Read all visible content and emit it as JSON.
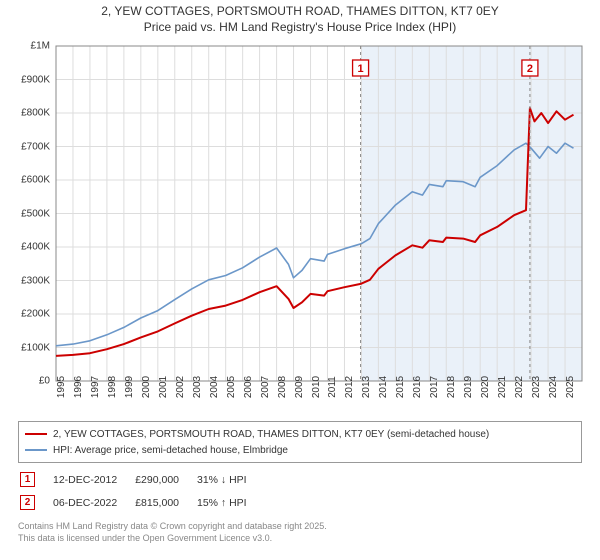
{
  "title_line1": "2, YEW COTTAGES, PORTSMOUTH ROAD, THAMES DITTON, KT7 0EY",
  "title_line2": "Price paid vs. HM Land Registry's House Price Index (HPI)",
  "chart": {
    "type": "line",
    "background_color": "#ffffff",
    "plot_border_color": "#888888",
    "grid_color": "#dddddd",
    "recent_band_color": "#eaf1f9",
    "recent_band_start_year": 2013,
    "xlim": [
      1995,
      2026
    ],
    "ylim": [
      0,
      1000000
    ],
    "ytick_step": 100000,
    "yticks": [
      "£0",
      "£100K",
      "£200K",
      "£300K",
      "£400K",
      "£500K",
      "£600K",
      "£700K",
      "£800K",
      "£900K",
      "£1M"
    ],
    "xticks": [
      "1995",
      "1996",
      "1997",
      "1998",
      "1999",
      "2000",
      "2001",
      "2002",
      "2003",
      "2004",
      "2005",
      "2006",
      "2007",
      "2008",
      "2009",
      "2010",
      "2011",
      "2012",
      "2013",
      "2014",
      "2015",
      "2016",
      "2017",
      "2018",
      "2019",
      "2020",
      "2021",
      "2022",
      "2023",
      "2024",
      "2025"
    ],
    "label_fontsize": 10,
    "series": [
      {
        "name": "price_paid",
        "color": "#cc0000",
        "width": 2,
        "points": [
          [
            1995,
            75000
          ],
          [
            1996,
            78000
          ],
          [
            1997,
            83000
          ],
          [
            1998,
            95000
          ],
          [
            1999,
            110000
          ],
          [
            2000,
            130000
          ],
          [
            2001,
            148000
          ],
          [
            2002,
            172000
          ],
          [
            2003,
            195000
          ],
          [
            2004,
            215000
          ],
          [
            2005,
            225000
          ],
          [
            2006,
            242000
          ],
          [
            2007,
            265000
          ],
          [
            2008,
            283000
          ],
          [
            2008.7,
            245000
          ],
          [
            2009,
            218000
          ],
          [
            2009.5,
            235000
          ],
          [
            2010,
            260000
          ],
          [
            2010.8,
            255000
          ],
          [
            2011,
            268000
          ],
          [
            2012,
            280000
          ],
          [
            2012.95,
            290000
          ],
          [
            2013.5,
            302000
          ],
          [
            2014,
            335000
          ],
          [
            2015,
            375000
          ],
          [
            2016,
            405000
          ],
          [
            2016.6,
            398000
          ],
          [
            2017,
            420000
          ],
          [
            2017.8,
            415000
          ],
          [
            2018,
            428000
          ],
          [
            2019,
            425000
          ],
          [
            2019.7,
            415000
          ],
          [
            2020,
            435000
          ],
          [
            2021,
            460000
          ],
          [
            2022,
            495000
          ],
          [
            2022.7,
            510000
          ],
          [
            2022.93,
            815000
          ],
          [
            2023.2,
            775000
          ],
          [
            2023.6,
            800000
          ],
          [
            2024,
            770000
          ],
          [
            2024.5,
            805000
          ],
          [
            2025,
            780000
          ],
          [
            2025.5,
            795000
          ]
        ]
      },
      {
        "name": "hpi",
        "color": "#6b97c9",
        "width": 1.6,
        "points": [
          [
            1995,
            105000
          ],
          [
            1996,
            110000
          ],
          [
            1997,
            120000
          ],
          [
            1998,
            138000
          ],
          [
            1999,
            160000
          ],
          [
            2000,
            188000
          ],
          [
            2001,
            210000
          ],
          [
            2002,
            243000
          ],
          [
            2003,
            275000
          ],
          [
            2004,
            302000
          ],
          [
            2005,
            315000
          ],
          [
            2006,
            338000
          ],
          [
            2007,
            370000
          ],
          [
            2008,
            397000
          ],
          [
            2008.7,
            348000
          ],
          [
            2009,
            308000
          ],
          [
            2009.5,
            330000
          ],
          [
            2010,
            365000
          ],
          [
            2010.8,
            358000
          ],
          [
            2011,
            378000
          ],
          [
            2012,
            395000
          ],
          [
            2013,
            410000
          ],
          [
            2013.5,
            425000
          ],
          [
            2014,
            470000
          ],
          [
            2015,
            525000
          ],
          [
            2016,
            565000
          ],
          [
            2016.6,
            555000
          ],
          [
            2017,
            587000
          ],
          [
            2017.8,
            580000
          ],
          [
            2018,
            598000
          ],
          [
            2019,
            595000
          ],
          [
            2019.7,
            580000
          ],
          [
            2020,
            608000
          ],
          [
            2021,
            643000
          ],
          [
            2022,
            690000
          ],
          [
            2022.7,
            710000
          ],
          [
            2023,
            695000
          ],
          [
            2023.5,
            665000
          ],
          [
            2024,
            700000
          ],
          [
            2024.5,
            680000
          ],
          [
            2025,
            710000
          ],
          [
            2025.5,
            695000
          ]
        ]
      }
    ],
    "markers": [
      {
        "num": "1",
        "year": 2012.95,
        "value": 290000,
        "border_color": "#cc0000",
        "text_color": "#cc0000",
        "date": "12-DEC-2012",
        "price": "£290,000",
        "delta": "31% ↓ HPI"
      },
      {
        "num": "2",
        "year": 2022.93,
        "value": 815000,
        "border_color": "#cc0000",
        "text_color": "#cc0000",
        "date": "06-DEC-2022",
        "price": "£815,000",
        "delta": "15% ↑ HPI"
      }
    ]
  },
  "legend": {
    "items": [
      {
        "color": "#cc0000",
        "label": "2, YEW COTTAGES, PORTSMOUTH ROAD, THAMES DITTON, KT7 0EY (semi-detached house)"
      },
      {
        "color": "#6b97c9",
        "label": "HPI: Average price, semi-detached house, Elmbridge"
      }
    ]
  },
  "footer_line1": "Contains HM Land Registry data © Crown copyright and database right 2025.",
  "footer_line2": "This data is licensed under the Open Government Licence v3.0."
}
